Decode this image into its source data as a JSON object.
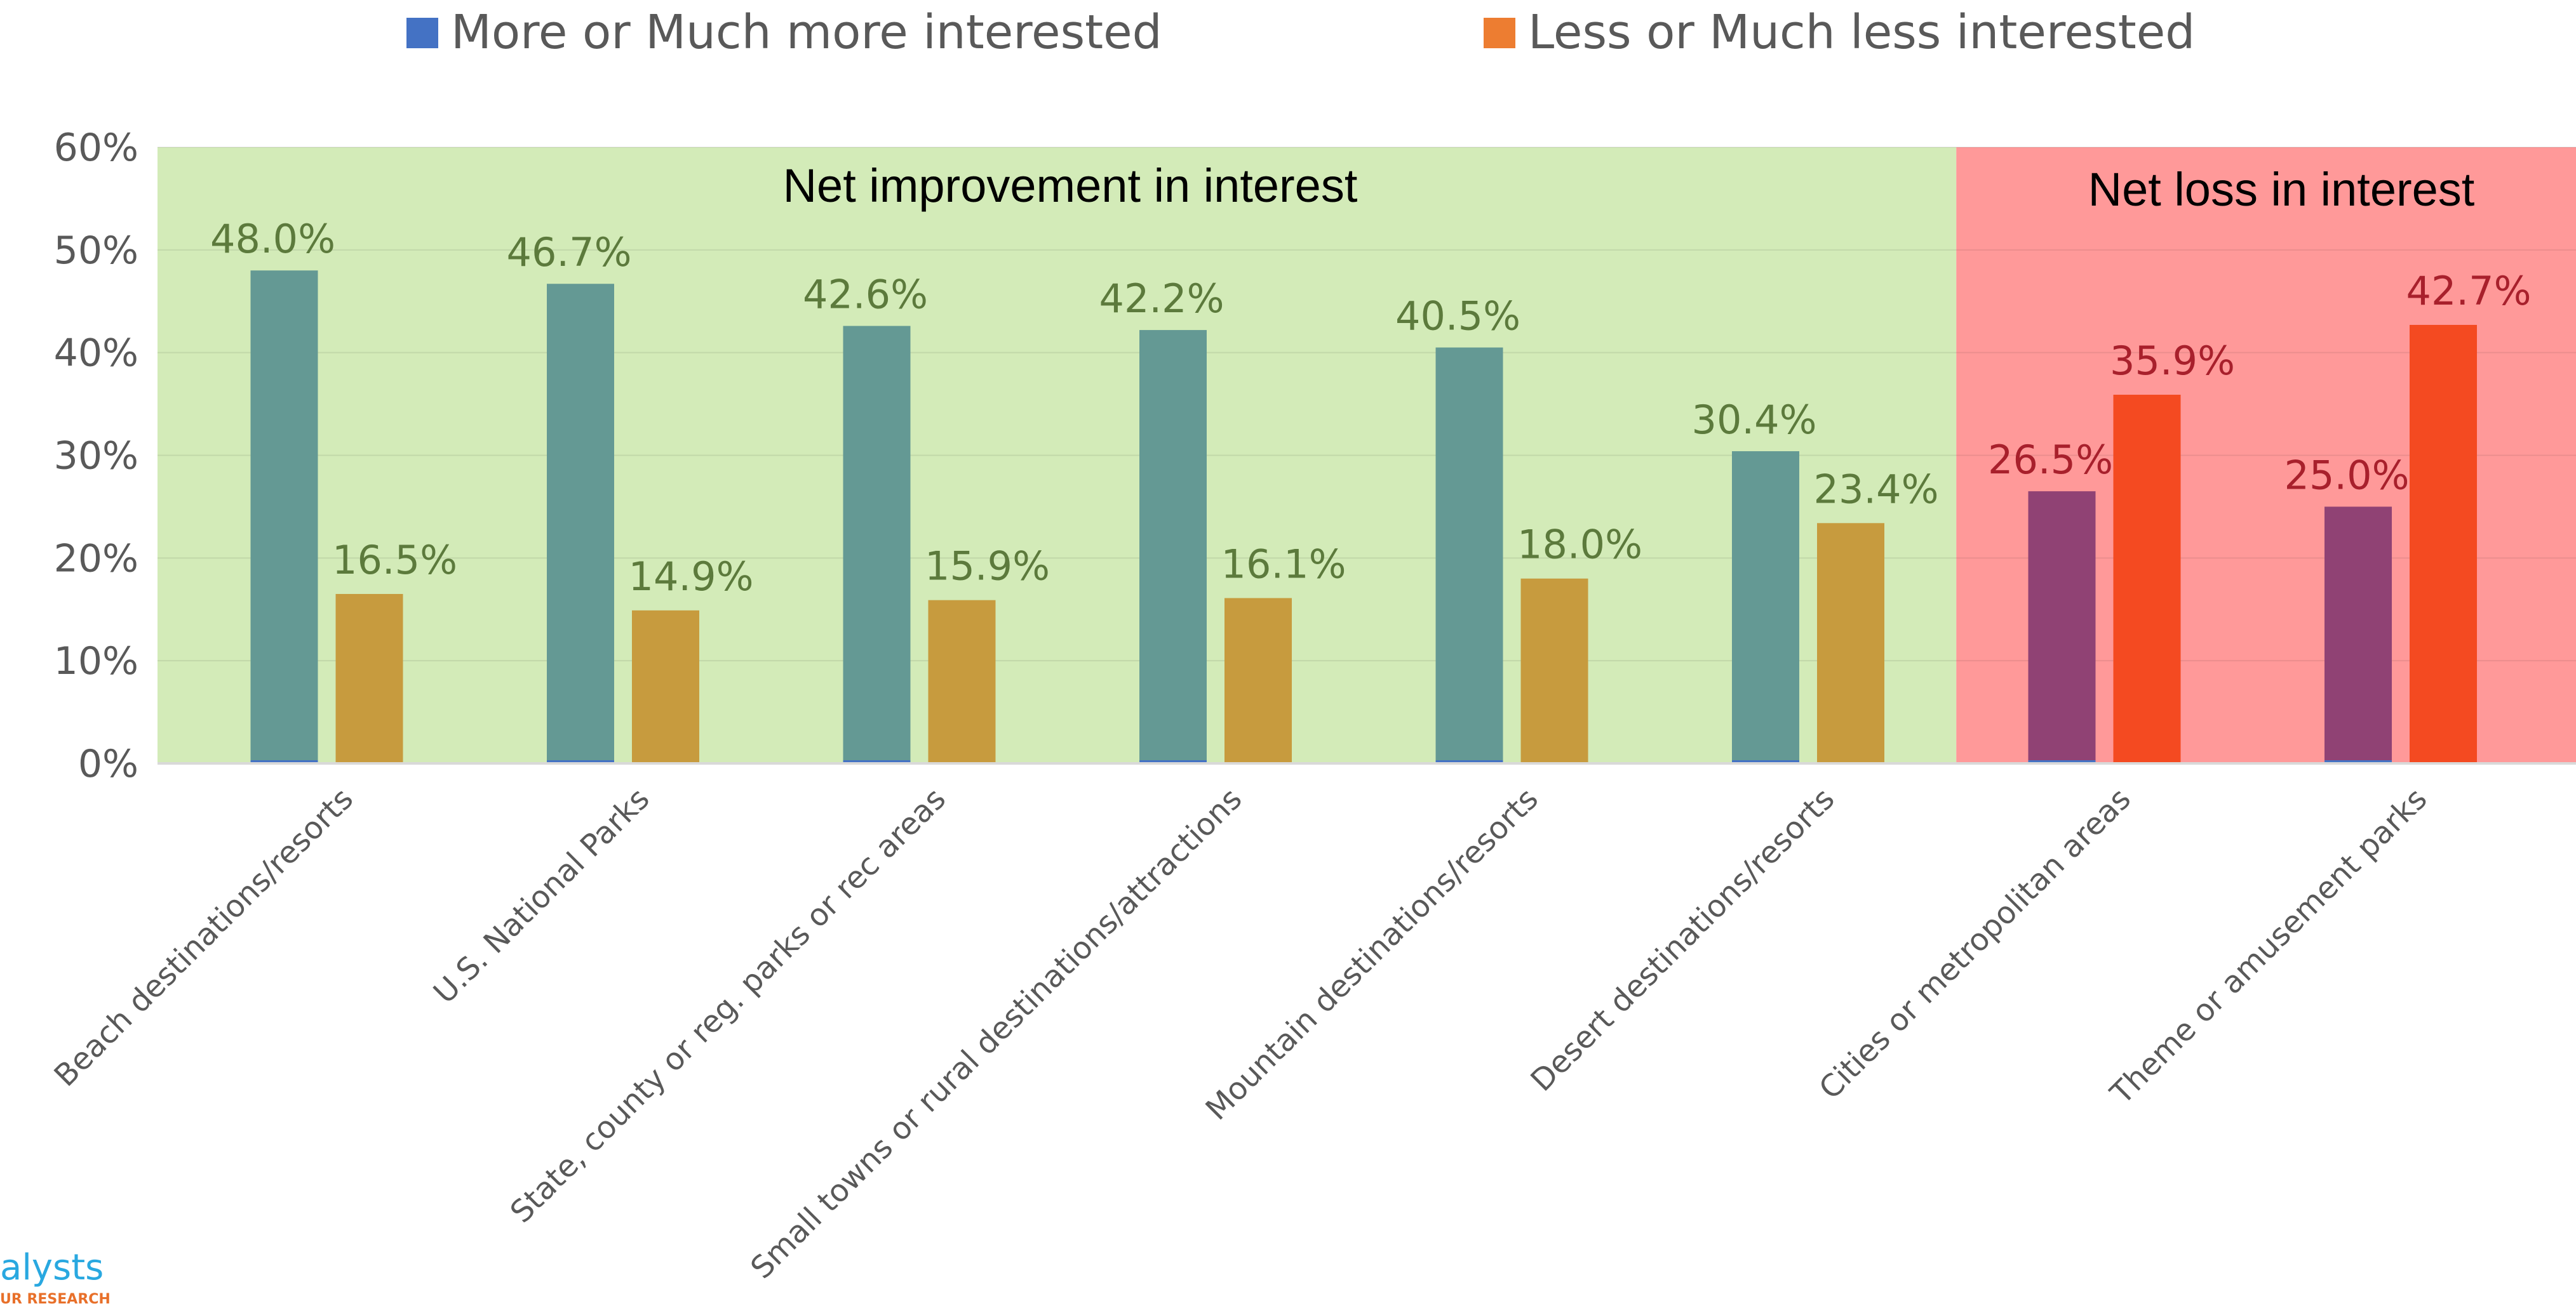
{
  "legend": [
    {
      "label": "More or Much more interested",
      "color": "#4472c4"
    },
    {
      "label": "Less or Much less interested",
      "color": "#ed7d31"
    }
  ],
  "zones": [
    {
      "label": "Net improvement in interest",
      "color": "#d3ebb8",
      "category_range": [
        0,
        5
      ]
    },
    {
      "label": "Net loss in interest",
      "color": "#ff9999",
      "category_range": [
        6,
        7
      ]
    }
  ],
  "logo": {
    "text": "alysts",
    "subtext": "UR RESEARCH"
  },
  "chart_data": {
    "type": "bar",
    "categories": [
      "Beach destinations/resorts",
      "U.S. National Parks",
      "State, county or reg. parks or rec areas",
      "Small towns or rural destinations/attractions",
      "Mountain destinations/resorts",
      "Desert destinations/resorts",
      "Cities or metropolitan areas",
      "Theme or amusement parks"
    ],
    "series": [
      {
        "name": "More or Much more interested",
        "values": [
          48.0,
          46.7,
          42.6,
          42.2,
          40.5,
          30.4,
          26.5,
          25.0
        ],
        "labels": [
          "48.0%",
          "46.7%",
          "42.6%",
          "42.2%",
          "40.5%",
          "30.4%",
          "26.5%",
          "25.0%"
        ],
        "colors": [
          "#649994",
          "#649994",
          "#649994",
          "#649994",
          "#649994",
          "#649994",
          "#904274",
          "#904274"
        ]
      },
      {
        "name": "Less or Much less interested",
        "values": [
          16.5,
          14.9,
          15.9,
          16.1,
          18.0,
          23.4,
          35.9,
          42.7
        ],
        "labels": [
          "16.5%",
          "14.9%",
          "15.9%",
          "16.1%",
          "18.0%",
          "23.4%",
          "35.9%",
          "42.7%"
        ],
        "colors": [
          "#c79b3e",
          "#c79b3e",
          "#c79b3e",
          "#c79b3e",
          "#c79b3e",
          "#c79b3e",
          "#f44a21",
          "#f44a21"
        ]
      }
    ],
    "label_colors": {
      "gain_zone": "#5c7a3c",
      "loss_zone": "#a8202c"
    },
    "ylim": [
      0,
      60
    ],
    "yticks": [
      0,
      10,
      20,
      30,
      40,
      50,
      60
    ],
    "ytick_labels": [
      "0%",
      "10%",
      "20%",
      "30%",
      "40%",
      "50%",
      "60%"
    ],
    "grid": true,
    "legend_position": "top"
  }
}
